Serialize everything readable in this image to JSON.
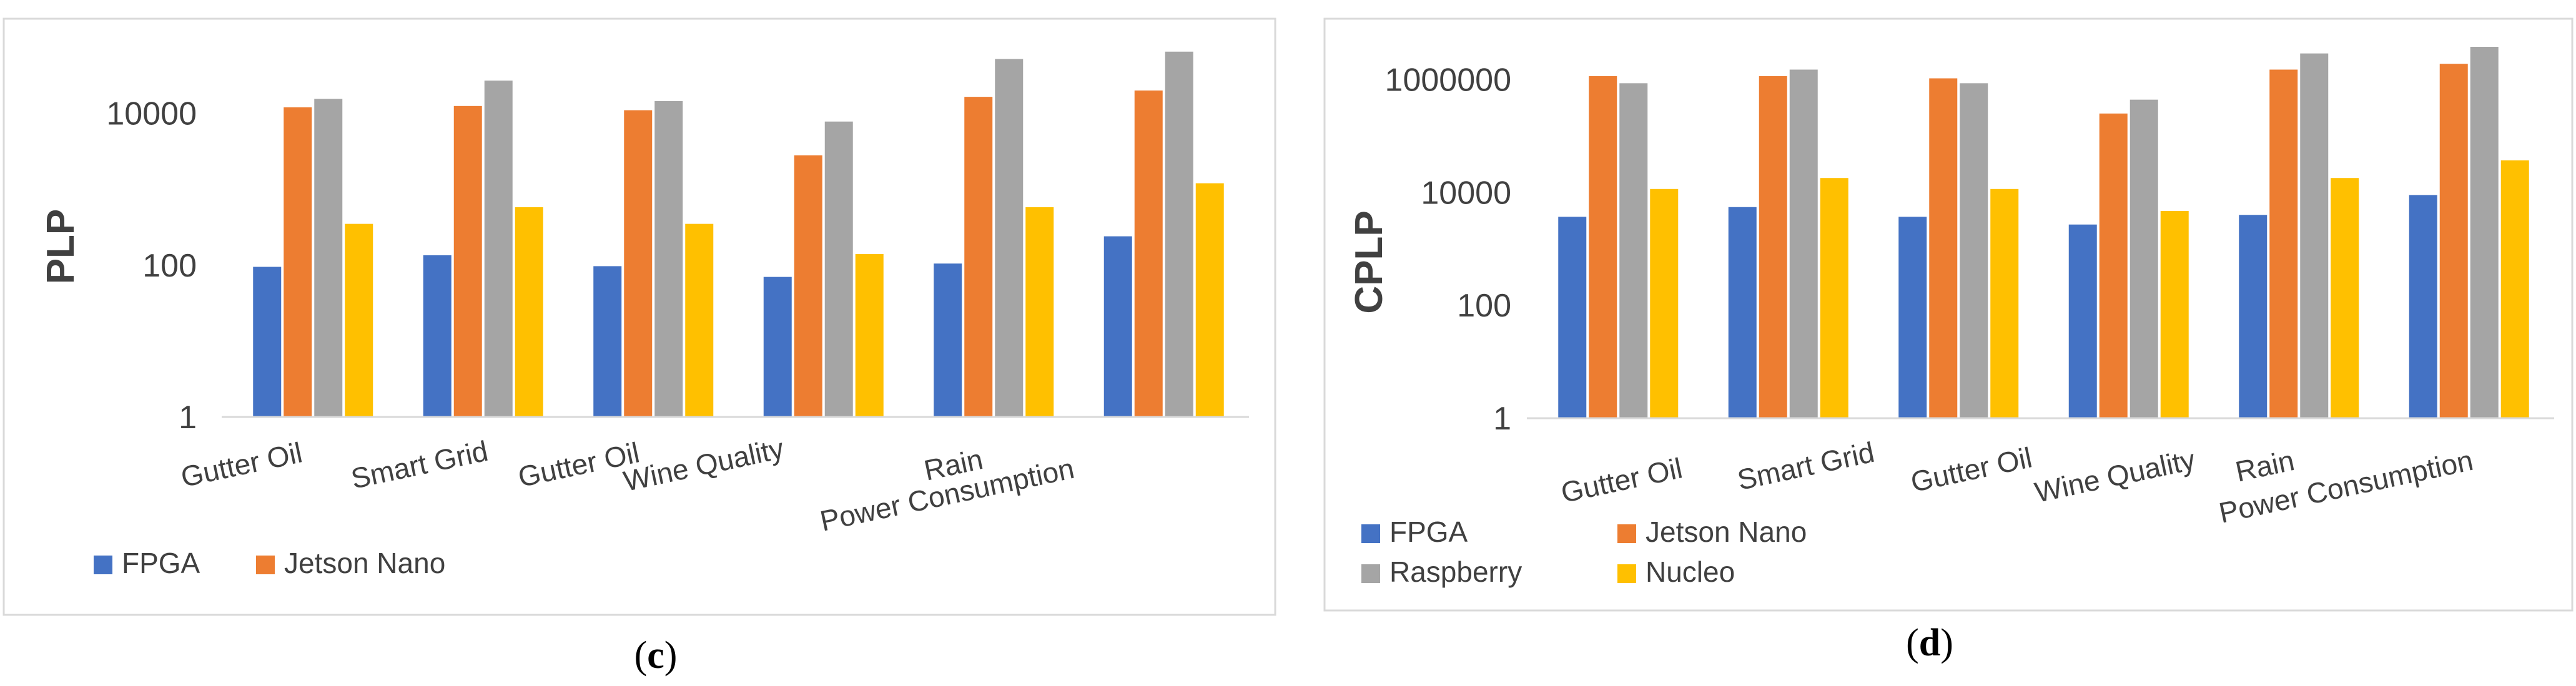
{
  "chart_data": [
    {
      "type": "bar",
      "panel": "c",
      "panel_label": {
        "open": "(",
        "letter": "c",
        "close": ")"
      },
      "ylabel": "PLP",
      "yscale": "log",
      "ylim": [
        1,
        100000
      ],
      "yticks": [
        "1",
        "100",
        "10000"
      ],
      "ytick_values": [
        1,
        100,
        10000
      ],
      "grid": false,
      "categories": [
        "Gutter Oil",
        "Smart Grid",
        "Gutter Oil",
        "Wine Quality",
        "Rain",
        "Power Consumption"
      ],
      "series": [
        {
          "name": "FPGA",
          "color": "#4472C4",
          "values": [
            95,
            135,
            97,
            70,
            105,
            240
          ]
        },
        {
          "name": "Jetson Nano",
          "color": "#ED7D31",
          "values": [
            12000,
            12500,
            11000,
            2800,
            16500,
            20000
          ]
        },
        {
          "name": "Raspberry",
          "color": "#A5A5A5",
          "values": [
            15500,
            27000,
            14500,
            7800,
            52000,
            65000
          ]
        },
        {
          "name": "Nucleo",
          "color": "#FFC000",
          "values": [
            350,
            580,
            350,
            140,
            580,
            1200
          ]
        }
      ],
      "legend": [
        {
          "name": "FPGA",
          "color": "#4472C4"
        },
        {
          "name": "Jetson Nano",
          "color": "#ED7D31"
        }
      ]
    },
    {
      "type": "bar",
      "panel": "d",
      "panel_label": {
        "open": "(",
        "letter": "d",
        "close": ")"
      },
      "ylabel": "CPLP",
      "yscale": "log",
      "ylim": [
        1,
        10000000
      ],
      "yticks": [
        "1",
        "100",
        "10000",
        "1000000"
      ],
      "ytick_values": [
        1,
        100,
        10000,
        1000000
      ],
      "grid": false,
      "categories": [
        "Gutter Oil",
        "Smart Grid",
        "Gutter Oil",
        "Wine Quality",
        "Rain",
        "Power Consumption"
      ],
      "series": [
        {
          "name": "FPGA",
          "color": "#4472C4",
          "values": [
            3700,
            5500,
            3700,
            2700,
            4000,
            9000
          ]
        },
        {
          "name": "Jetson Nano",
          "color": "#ED7D31",
          "values": [
            1150000,
            1150000,
            1050000,
            250000,
            1500000,
            1900000
          ]
        },
        {
          "name": "Raspberry",
          "color": "#A5A5A5",
          "values": [
            860000,
            1500000,
            860000,
            440000,
            2900000,
            3800000
          ]
        },
        {
          "name": "Nucleo",
          "color": "#FFC000",
          "values": [
            11500,
            18000,
            11500,
            4700,
            18000,
            37000
          ]
        }
      ],
      "legend": [
        {
          "name": "FPGA",
          "color": "#4472C4"
        },
        {
          "name": "Jetson Nano",
          "color": "#ED7D31"
        },
        {
          "name": "Raspberry",
          "color": "#A5A5A5"
        },
        {
          "name": "Nucleo",
          "color": "#FFC000"
        }
      ]
    }
  ]
}
